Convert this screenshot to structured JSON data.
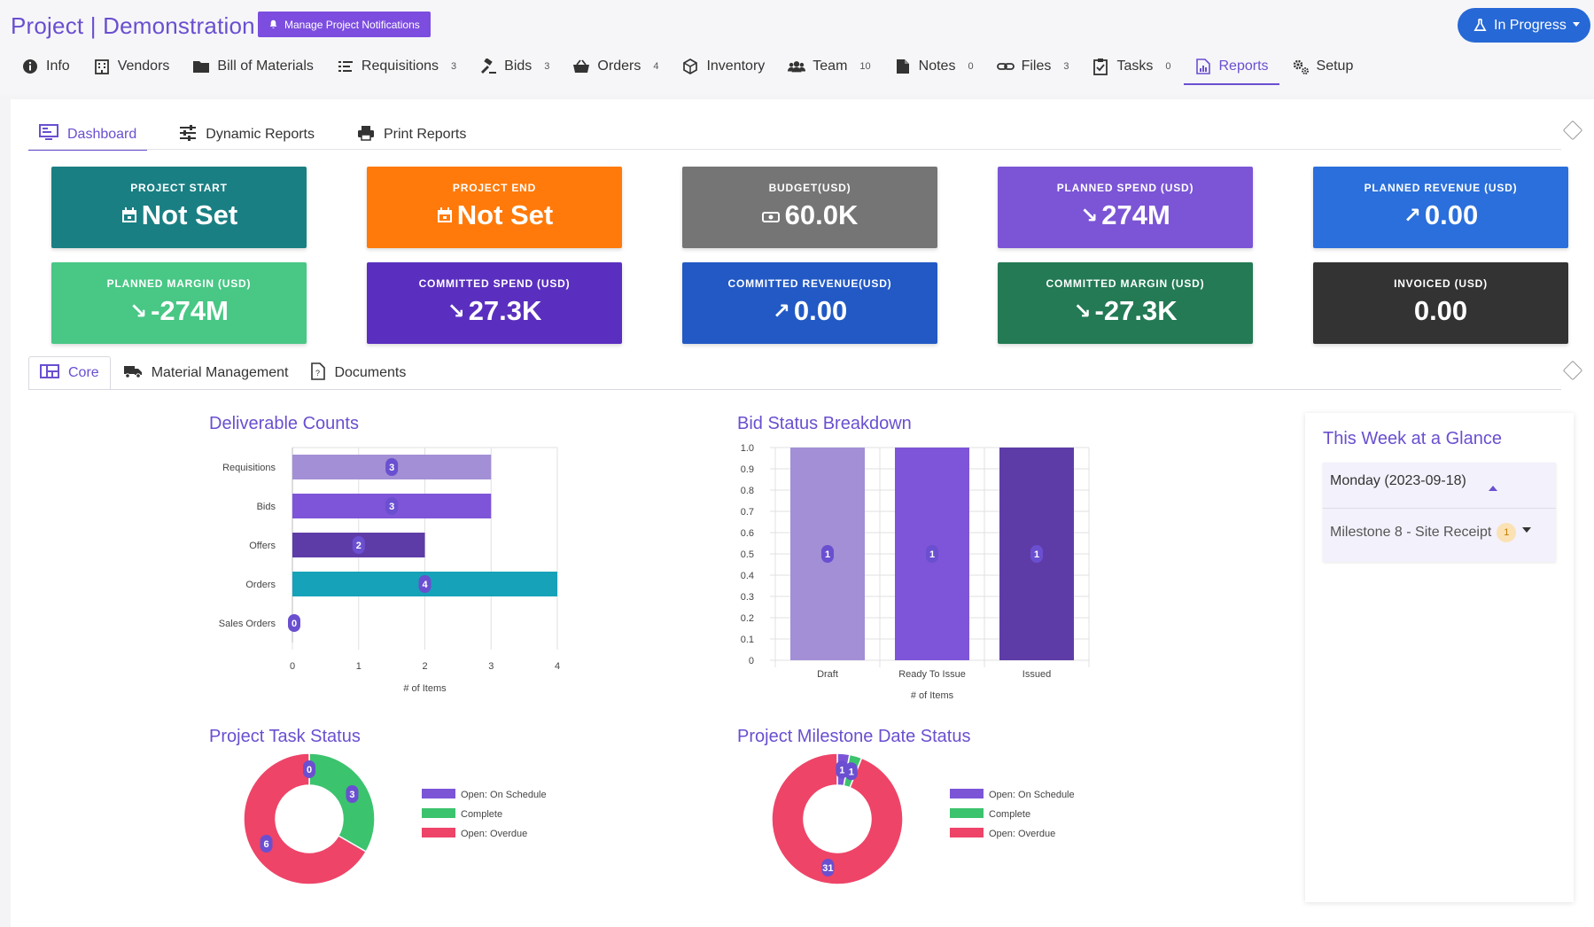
{
  "header": {
    "title": "Project | Demonstration",
    "notify_label": "Manage Project Notifications",
    "status_label": "In Progress"
  },
  "nav": [
    {
      "label": "Info",
      "count": "",
      "icon": "info-icon"
    },
    {
      "label": "Vendors",
      "count": "",
      "icon": "building-icon"
    },
    {
      "label": "Bill of Materials",
      "count": "",
      "icon": "folder-icon"
    },
    {
      "label": "Requisitions",
      "count": "3",
      "icon": "list-icon"
    },
    {
      "label": "Bids",
      "count": "3",
      "icon": "gavel-icon"
    },
    {
      "label": "Orders",
      "count": "4",
      "icon": "basket-icon"
    },
    {
      "label": "Inventory",
      "count": "",
      "icon": "box-icon"
    },
    {
      "label": "Team",
      "count": "10",
      "icon": "users-icon"
    },
    {
      "label": "Notes",
      "count": "0",
      "icon": "note-icon"
    },
    {
      "label": "Files",
      "count": "3",
      "icon": "link-icon"
    },
    {
      "label": "Tasks",
      "count": "0",
      "icon": "clipboard-check-icon"
    },
    {
      "label": "Reports",
      "count": "",
      "icon": "report-icon"
    },
    {
      "label": "Setup",
      "count": "",
      "icon": "gears-icon"
    }
  ],
  "subtabs": [
    "Dashboard",
    "Dynamic Reports",
    "Print Reports"
  ],
  "cards": [
    {
      "label": "PROJECT START",
      "value": "Not Set",
      "prefix": "calendar",
      "color": "#1a7f83"
    },
    {
      "label": "PROJECT END",
      "value": "Not Set",
      "prefix": "calendar",
      "color": "#ff7a0a"
    },
    {
      "label": "BUDGET(USD)",
      "value": "60.0K",
      "prefix": "money",
      "color": "#757575"
    },
    {
      "label": "PLANNED SPEND (USD)",
      "value": "274M",
      "prefix": "down",
      "color": "#7b55d6"
    },
    {
      "label": "PLANNED REVENUE (USD)",
      "value": "0.00",
      "prefix": "up",
      "color": "#2a6fdb"
    },
    {
      "label": "PLANNED MARGIN (USD)",
      "value": "-274M",
      "prefix": "down",
      "color": "#48c785"
    },
    {
      "label": "COMMITTED SPEND (USD)",
      "value": "27.3K",
      "prefix": "down",
      "color": "#5a2fbf"
    },
    {
      "label": "COMMITTED REVENUE(USD)",
      "value": "0.00",
      "prefix": "up",
      "color": "#2259c5"
    },
    {
      "label": "COMMITTED MARGIN (USD)",
      "value": "-27.3K",
      "prefix": "down",
      "color": "#237a55"
    },
    {
      "label": "INVOICED (USD)",
      "value": "0.00",
      "prefix": "",
      "color": "#333333"
    }
  ],
  "section_tabs": [
    "Core",
    "Material Management",
    "Documents"
  ],
  "glance": {
    "title": "This Week at a Glance",
    "day": "Monday (2023-09-18)",
    "item": "Milestone 8 - Site Receipt",
    "item_count": "1"
  },
  "chart_data": [
    {
      "type": "bar",
      "orientation": "horizontal",
      "title": "Deliverable Counts",
      "categories": [
        "Requisitions",
        "Bids",
        "Offers",
        "Orders",
        "Sales Orders"
      ],
      "values": [
        3,
        3,
        2,
        4,
        0
      ],
      "colors": [
        "#a28fd6",
        "#7e55d8",
        "#5e3ca8",
        "#16a2b8",
        "#6a4fd0"
      ],
      "xlabel": "# of Items",
      "xticks": [
        "0",
        "1",
        "2",
        "3",
        "4"
      ],
      "xlim": [
        0,
        4
      ]
    },
    {
      "type": "bar",
      "title": "Bid Status Breakdown",
      "categories": [
        "Draft",
        "Ready To Issue",
        "Issued"
      ],
      "values": [
        1,
        1,
        1
      ],
      "colors": [
        "#a28fd6",
        "#7e55d8",
        "#5e3ca8"
      ],
      "xlabel": "# of Items",
      "yticks": [
        "0",
        "0.1",
        "0.2",
        "0.3",
        "0.4",
        "0.5",
        "0.6",
        "0.7",
        "0.8",
        "0.9",
        "1.0"
      ],
      "ylim": [
        0,
        1.0
      ]
    },
    {
      "type": "pie",
      "title": "Project Task Status",
      "labels": [
        "Open: On Schedule",
        "Complete",
        "Open: Overdue"
      ],
      "values": [
        0,
        3,
        6
      ],
      "colors": [
        "#7b55d6",
        "#3cc36e",
        "#ee4468"
      ]
    },
    {
      "type": "pie",
      "title": "Project Milestone Date Status",
      "labels": [
        "Open: On Schedule",
        "Complete",
        "Open: Overdue"
      ],
      "values": [
        1,
        1,
        31
      ],
      "colors": [
        "#7b55d6",
        "#3cc36e",
        "#ee4468"
      ]
    }
  ]
}
